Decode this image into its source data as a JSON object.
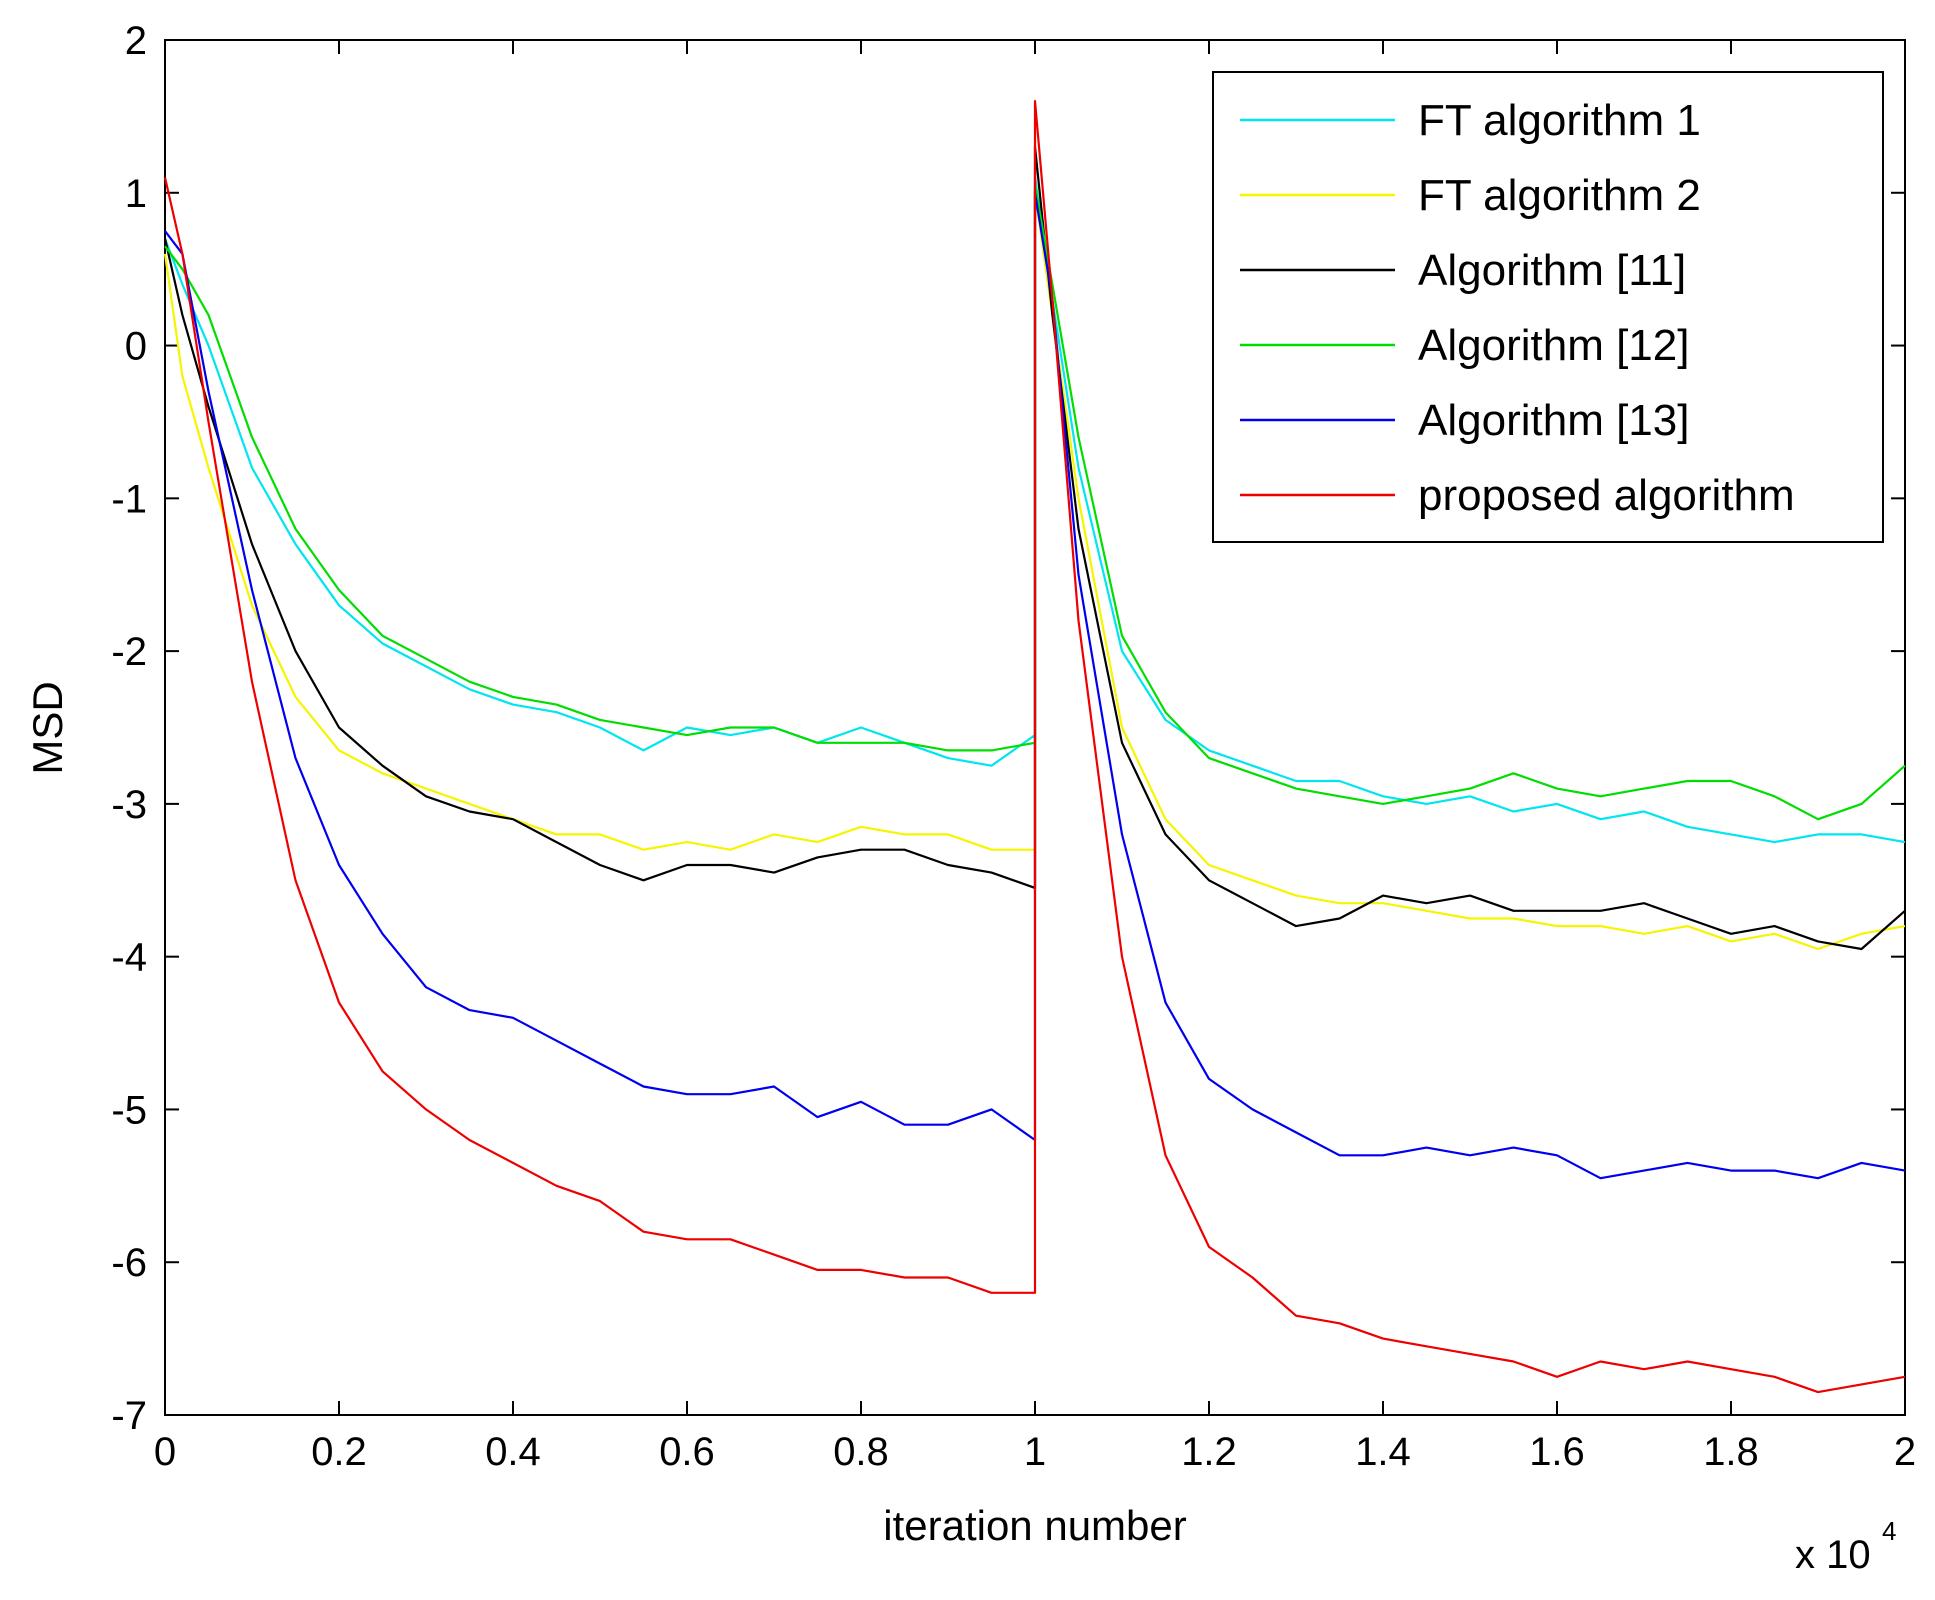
{
  "chart_data": {
    "type": "line",
    "title": "",
    "xlabel": "iteration number",
    "ylabel": "MSD",
    "x_multiplier_base": "x 10",
    "x_multiplier_exp": "4",
    "xlim": [
      0,
      2
    ],
    "ylim": [
      -7,
      2
    ],
    "xticks": [
      0,
      0.2,
      0.4,
      0.6,
      0.8,
      1,
      1.2,
      1.4,
      1.6,
      1.8,
      2
    ],
    "yticks": [
      2,
      1,
      0,
      -1,
      -2,
      -3,
      -4,
      -5,
      -6,
      -7
    ],
    "xtick_labels": [
      "0",
      "0.2",
      "0.4",
      "0.6",
      "0.8",
      "1",
      "1.2",
      "1.4",
      "1.6",
      "1.8",
      "2"
    ],
    "ytick_labels": [
      "2",
      "1",
      "0",
      "-1",
      "-2",
      "-3",
      "-4",
      "-5",
      "-6",
      "-7"
    ],
    "legend_position": "top-right",
    "series": [
      {
        "name": "FT algorithm 1",
        "color": "#00e5ee",
        "x": [
          0,
          0.02,
          0.05,
          0.1,
          0.15,
          0.2,
          0.25,
          0.3,
          0.35,
          0.4,
          0.45,
          0.5,
          0.55,
          0.6,
          0.65,
          0.7,
          0.75,
          0.8,
          0.85,
          0.9,
          0.95,
          1.0,
          1.0,
          1.02,
          1.05,
          1.1,
          1.15,
          1.2,
          1.25,
          1.3,
          1.35,
          1.4,
          1.45,
          1.5,
          1.55,
          1.6,
          1.65,
          1.7,
          1.75,
          1.8,
          1.85,
          1.9,
          1.95,
          2.0
        ],
        "values": [
          0.7,
          0.4,
          0.0,
          -0.8,
          -1.3,
          -1.7,
          -1.95,
          -2.1,
          -2.25,
          -2.35,
          -2.4,
          -2.5,
          -2.65,
          -2.5,
          -2.55,
          -2.5,
          -2.6,
          -2.5,
          -2.6,
          -2.7,
          -2.75,
          -2.55,
          1.1,
          0.3,
          -0.8,
          -2.0,
          -2.45,
          -2.65,
          -2.75,
          -2.85,
          -2.85,
          -2.95,
          -3.0,
          -2.95,
          -3.05,
          -3.0,
          -3.1,
          -3.05,
          -3.15,
          -3.2,
          -3.25,
          -3.2,
          -3.2,
          -3.25
        ]
      },
      {
        "name": "FT algorithm 2",
        "color": "#f5f500",
        "x": [
          0,
          0.02,
          0.05,
          0.1,
          0.15,
          0.2,
          0.25,
          0.3,
          0.35,
          0.4,
          0.45,
          0.5,
          0.55,
          0.6,
          0.65,
          0.7,
          0.75,
          0.8,
          0.85,
          0.9,
          0.95,
          1.0,
          1.0,
          1.02,
          1.05,
          1.1,
          1.15,
          1.2,
          1.25,
          1.3,
          1.35,
          1.4,
          1.45,
          1.5,
          1.55,
          1.6,
          1.65,
          1.7,
          1.75,
          1.8,
          1.85,
          1.9,
          1.95,
          2.0
        ],
        "values": [
          0.6,
          -0.2,
          -0.8,
          -1.7,
          -2.3,
          -2.65,
          -2.8,
          -2.9,
          -3.0,
          -3.1,
          -3.2,
          -3.2,
          -3.3,
          -3.25,
          -3.3,
          -3.2,
          -3.25,
          -3.15,
          -3.2,
          -3.2,
          -3.3,
          -3.3,
          1.0,
          0.2,
          -1.0,
          -2.5,
          -3.1,
          -3.4,
          -3.5,
          -3.6,
          -3.65,
          -3.65,
          -3.7,
          -3.75,
          -3.75,
          -3.8,
          -3.8,
          -3.85,
          -3.8,
          -3.9,
          -3.85,
          -3.95,
          -3.85,
          -3.8
        ]
      },
      {
        "name": "Algorithm [11]",
        "color": "#000000",
        "x": [
          0,
          0.02,
          0.05,
          0.1,
          0.15,
          0.2,
          0.25,
          0.3,
          0.35,
          0.4,
          0.45,
          0.5,
          0.55,
          0.6,
          0.65,
          0.7,
          0.75,
          0.8,
          0.85,
          0.9,
          0.95,
          1.0,
          1.0,
          1.02,
          1.05,
          1.1,
          1.15,
          1.2,
          1.25,
          1.3,
          1.35,
          1.4,
          1.45,
          1.5,
          1.55,
          1.6,
          1.65,
          1.7,
          1.75,
          1.8,
          1.85,
          1.9,
          1.95,
          2.0
        ],
        "values": [
          0.7,
          0.2,
          -0.4,
          -1.3,
          -2.0,
          -2.5,
          -2.75,
          -2.95,
          -3.05,
          -3.1,
          -3.25,
          -3.4,
          -3.5,
          -3.4,
          -3.4,
          -3.45,
          -3.35,
          -3.3,
          -3.3,
          -3.4,
          -3.45,
          -3.55,
          1.3,
          0.2,
          -1.2,
          -2.6,
          -3.2,
          -3.5,
          -3.65,
          -3.8,
          -3.75,
          -3.6,
          -3.65,
          -3.6,
          -3.7,
          -3.7,
          -3.7,
          -3.65,
          -3.75,
          -3.85,
          -3.8,
          -3.9,
          -3.95,
          -3.7
        ]
      },
      {
        "name": "Algorithm [12]",
        "color": "#00dd00",
        "x": [
          0,
          0.02,
          0.05,
          0.1,
          0.15,
          0.2,
          0.25,
          0.3,
          0.35,
          0.4,
          0.45,
          0.5,
          0.55,
          0.6,
          0.65,
          0.7,
          0.75,
          0.8,
          0.85,
          0.9,
          0.95,
          1.0,
          1.0,
          1.02,
          1.05,
          1.1,
          1.15,
          1.2,
          1.25,
          1.3,
          1.35,
          1.4,
          1.45,
          1.5,
          1.55,
          1.6,
          1.65,
          1.7,
          1.75,
          1.8,
          1.85,
          1.9,
          1.95,
          2.0
        ],
        "values": [
          0.65,
          0.5,
          0.2,
          -0.6,
          -1.2,
          -1.6,
          -1.9,
          -2.05,
          -2.2,
          -2.3,
          -2.35,
          -2.45,
          -2.5,
          -2.55,
          -2.5,
          -2.5,
          -2.6,
          -2.6,
          -2.6,
          -2.65,
          -2.65,
          -2.6,
          1.05,
          0.4,
          -0.6,
          -1.9,
          -2.4,
          -2.7,
          -2.8,
          -2.9,
          -2.95,
          -3.0,
          -2.95,
          -2.9,
          -2.8,
          -2.9,
          -2.95,
          -2.9,
          -2.85,
          -2.85,
          -2.95,
          -3.1,
          -3.0,
          -2.75
        ]
      },
      {
        "name": "Algorithm [13]",
        "color": "#0000ee",
        "x": [
          0,
          0.02,
          0.05,
          0.1,
          0.15,
          0.2,
          0.25,
          0.3,
          0.35,
          0.4,
          0.45,
          0.5,
          0.55,
          0.6,
          0.65,
          0.7,
          0.75,
          0.8,
          0.85,
          0.9,
          0.95,
          1.0,
          1.0,
          1.02,
          1.05,
          1.1,
          1.15,
          1.2,
          1.25,
          1.3,
          1.35,
          1.4,
          1.45,
          1.5,
          1.55,
          1.6,
          1.65,
          1.7,
          1.75,
          1.8,
          1.85,
          1.9,
          1.95,
          2.0
        ],
        "values": [
          0.75,
          0.6,
          -0.3,
          -1.6,
          -2.7,
          -3.4,
          -3.85,
          -4.2,
          -4.35,
          -4.4,
          -4.55,
          -4.7,
          -4.85,
          -4.9,
          -4.9,
          -4.85,
          -5.05,
          -4.95,
          -5.1,
          -5.1,
          -5.0,
          -5.2,
          1.0,
          0.3,
          -1.5,
          -3.2,
          -4.3,
          -4.8,
          -5.0,
          -5.15,
          -5.3,
          -5.3,
          -5.25,
          -5.3,
          -5.25,
          -5.3,
          -5.45,
          -5.4,
          -5.35,
          -5.4,
          -5.4,
          -5.45,
          -5.35,
          -5.4
        ]
      },
      {
        "name": "proposed algorithm",
        "color": "#ee0000",
        "x": [
          0,
          0.02,
          0.05,
          0.1,
          0.15,
          0.2,
          0.25,
          0.3,
          0.35,
          0.4,
          0.45,
          0.5,
          0.55,
          0.6,
          0.65,
          0.7,
          0.75,
          0.8,
          0.85,
          0.9,
          0.95,
          1.0,
          1.0,
          1.02,
          1.05,
          1.1,
          1.15,
          1.2,
          1.25,
          1.3,
          1.35,
          1.4,
          1.45,
          1.5,
          1.55,
          1.6,
          1.65,
          1.7,
          1.75,
          1.8,
          1.85,
          1.9,
          1.95,
          2.0
        ],
        "values": [
          1.1,
          0.6,
          -0.5,
          -2.2,
          -3.5,
          -4.3,
          -4.75,
          -5.0,
          -5.2,
          -5.35,
          -5.5,
          -5.6,
          -5.8,
          -5.85,
          -5.85,
          -5.95,
          -6.05,
          -6.05,
          -6.1,
          -6.1,
          -6.2,
          -6.2,
          1.6,
          0.3,
          -1.8,
          -4.0,
          -5.3,
          -5.9,
          -6.1,
          -6.35,
          -6.4,
          -6.5,
          -6.55,
          -6.6,
          -6.65,
          -6.75,
          -6.65,
          -6.7,
          -6.65,
          -6.7,
          -6.75,
          -6.85,
          -6.8,
          -6.75
        ]
      }
    ]
  }
}
